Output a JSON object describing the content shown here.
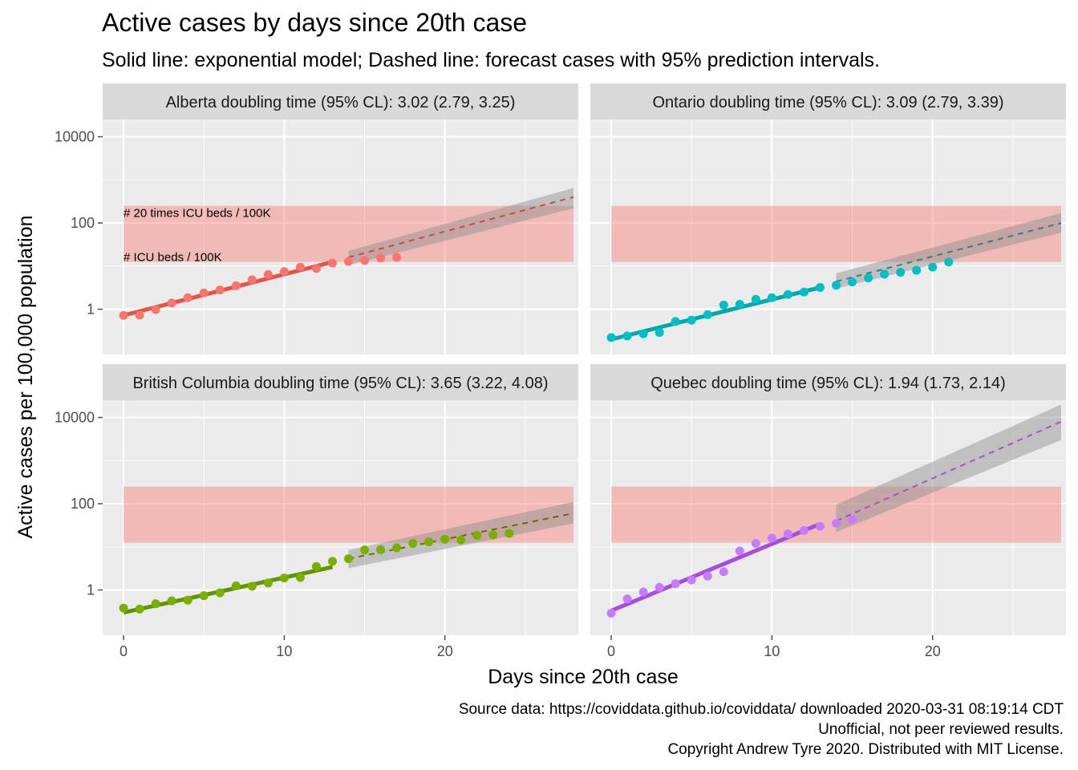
{
  "title": "Active cases by days since 20th case",
  "subtitle": "Solid line: exponential model; Dashed line: forecast cases with 95% prediction intervals.",
  "caption": [
    "Source data: https://coviddata.github.io/coviddata/ downloaded  2020-03-31 08:19:14 CDT",
    "Unofficial, not peer reviewed results.",
    "Copyright Andrew Tyre 2020. Distributed with MIT License."
  ],
  "chart_data": {
    "type": "scatter",
    "xlabel": "Days since 20th case",
    "ylabel": "Active cases per 100,000 population",
    "xlim": [
      -1.3,
      28.3
    ],
    "ylim_log10": [
      -1.05,
      4.4
    ],
    "y_scale": "log10",
    "x_ticks": [
      0,
      10,
      20
    ],
    "x_tick_labels": [
      "0",
      "10",
      "20"
    ],
    "y_ticks": [
      1,
      100,
      10000
    ],
    "y_tick_labels": [
      "1",
      "100",
      "10000"
    ],
    "grid": true,
    "reference_band": {
      "ymin": 12.5,
      "ymax": 250,
      "x": [
        0,
        28
      ],
      "color": "#F8766D"
    },
    "reference_labels": [
      "# 20 times ICU beds / 100K",
      "# ICU beds / 100K"
    ],
    "panels": [
      {
        "strip": "Alberta doubling time (95% CL): 3.02 (2.79, 3.25)",
        "color": "#F8766D",
        "line_color": "#E2534B",
        "dash_color": "#CC4A43",
        "points": [
          [
            0,
            0.72
          ],
          [
            1,
            0.73
          ],
          [
            2,
            0.98
          ],
          [
            3,
            1.4
          ],
          [
            4,
            1.85
          ],
          [
            5,
            2.4
          ],
          [
            6,
            2.8
          ],
          [
            7,
            3.5
          ],
          [
            8,
            4.8
          ],
          [
            9,
            6.4
          ],
          [
            10,
            7.5
          ],
          [
            11,
            9.5
          ],
          [
            12,
            8.8
          ],
          [
            13,
            11.8
          ],
          [
            14,
            12.8
          ],
          [
            15,
            13.5
          ],
          [
            16,
            15.5
          ],
          [
            17,
            16.0
          ]
        ],
        "fit": [
          [
            0,
            0.72
          ],
          [
            13,
            12.5
          ]
        ],
        "forecast": [
          [
            14,
            16.0
          ],
          [
            28,
            400
          ]
        ],
        "band_lower": [
          [
            14,
            10.5
          ],
          [
            28,
            220
          ]
        ],
        "band_upper": [
          [
            14,
            22.5
          ],
          [
            28,
            650
          ]
        ]
      },
      {
        "strip": "Ontario doubling time (95% CL): 3.09 (2.79, 3.39)",
        "color": "#00BFC4",
        "line_color": "#00A6AB",
        "dash_color": "#3B7B82",
        "points": [
          [
            0,
            0.22
          ],
          [
            1,
            0.24
          ],
          [
            2,
            0.27
          ],
          [
            3,
            0.29
          ],
          [
            4,
            0.52
          ],
          [
            5,
            0.56
          ],
          [
            6,
            0.75
          ],
          [
            7,
            1.25
          ],
          [
            8,
            1.3
          ],
          [
            9,
            1.7
          ],
          [
            10,
            1.85
          ],
          [
            11,
            2.2
          ],
          [
            12,
            2.5
          ],
          [
            13,
            3.2
          ],
          [
            14,
            3.6
          ],
          [
            15,
            4.3
          ],
          [
            16,
            5.3
          ],
          [
            17,
            6.5
          ],
          [
            18,
            7.2
          ],
          [
            19,
            8.0
          ],
          [
            20,
            9.5
          ],
          [
            21,
            12.5
          ]
        ],
        "fit": [
          [
            0,
            0.2
          ],
          [
            13,
            3.2
          ]
        ],
        "forecast": [
          [
            14,
            4.4
          ],
          [
            28,
            100
          ]
        ],
        "band_lower": [
          [
            14,
            3.0
          ],
          [
            28,
            60
          ]
        ],
        "band_upper": [
          [
            14,
            6.8
          ],
          [
            28,
            170
          ]
        ]
      },
      {
        "strip": "British Columbia doubling time (95% CL): 3.65 (3.22, 4.08)",
        "color": "#7CAE00",
        "line_color": "#5E9400",
        "dash_color": "#6B6B00",
        "points": [
          [
            0,
            0.38
          ],
          [
            1,
            0.36
          ],
          [
            2,
            0.48
          ],
          [
            3,
            0.56
          ],
          [
            4,
            0.58
          ],
          [
            5,
            0.74
          ],
          [
            6,
            0.86
          ],
          [
            7,
            1.25
          ],
          [
            8,
            1.22
          ],
          [
            9,
            1.45
          ],
          [
            10,
            1.9
          ],
          [
            11,
            1.95
          ],
          [
            12,
            3.5
          ],
          [
            13,
            4.6
          ],
          [
            14,
            5.3
          ],
          [
            15,
            8.5
          ],
          [
            16,
            8.6
          ],
          [
            17,
            9.5
          ],
          [
            18,
            12.0
          ],
          [
            19,
            13.0
          ],
          [
            20,
            15.0
          ],
          [
            21,
            14.5
          ],
          [
            22,
            18.5
          ],
          [
            23,
            19.0
          ],
          [
            24,
            20.5
          ]
        ],
        "fit": [
          [
            0,
            0.3
          ],
          [
            13,
            3.4
          ]
        ],
        "forecast": [
          [
            14,
            5.3
          ],
          [
            28,
            60
          ]
        ],
        "band_lower": [
          [
            14,
            3.2
          ],
          [
            28,
            35
          ]
        ],
        "band_upper": [
          [
            14,
            8.5
          ],
          [
            28,
            110
          ]
        ]
      },
      {
        "strip": "Quebec doubling time (95% CL): 1.94 (1.73, 2.14)",
        "color": "#C77CFF",
        "line_color": "#A64EDB",
        "dash_color": "#A54FCF",
        "points": [
          [
            0,
            0.29
          ],
          [
            1,
            0.62
          ],
          [
            2,
            0.9
          ],
          [
            3,
            1.15
          ],
          [
            4,
            1.4
          ],
          [
            5,
            1.7
          ],
          [
            6,
            2.1
          ],
          [
            7,
            2.65
          ],
          [
            8,
            8.0
          ],
          [
            9,
            12.0
          ],
          [
            10,
            16.0
          ],
          [
            11,
            20.0
          ],
          [
            12,
            24.0
          ],
          [
            13,
            30.0
          ],
          [
            14,
            35.0
          ],
          [
            15,
            42.0
          ]
        ],
        "fit": [
          [
            0,
            0.33
          ],
          [
            13,
            34
          ]
        ],
        "forecast": [
          [
            14,
            40
          ],
          [
            28,
            8000
          ]
        ],
        "band_lower": [
          [
            14,
            22
          ],
          [
            28,
            3000
          ]
        ],
        "band_upper": [
          [
            14,
            95
          ],
          [
            28,
            20000
          ]
        ]
      }
    ]
  }
}
